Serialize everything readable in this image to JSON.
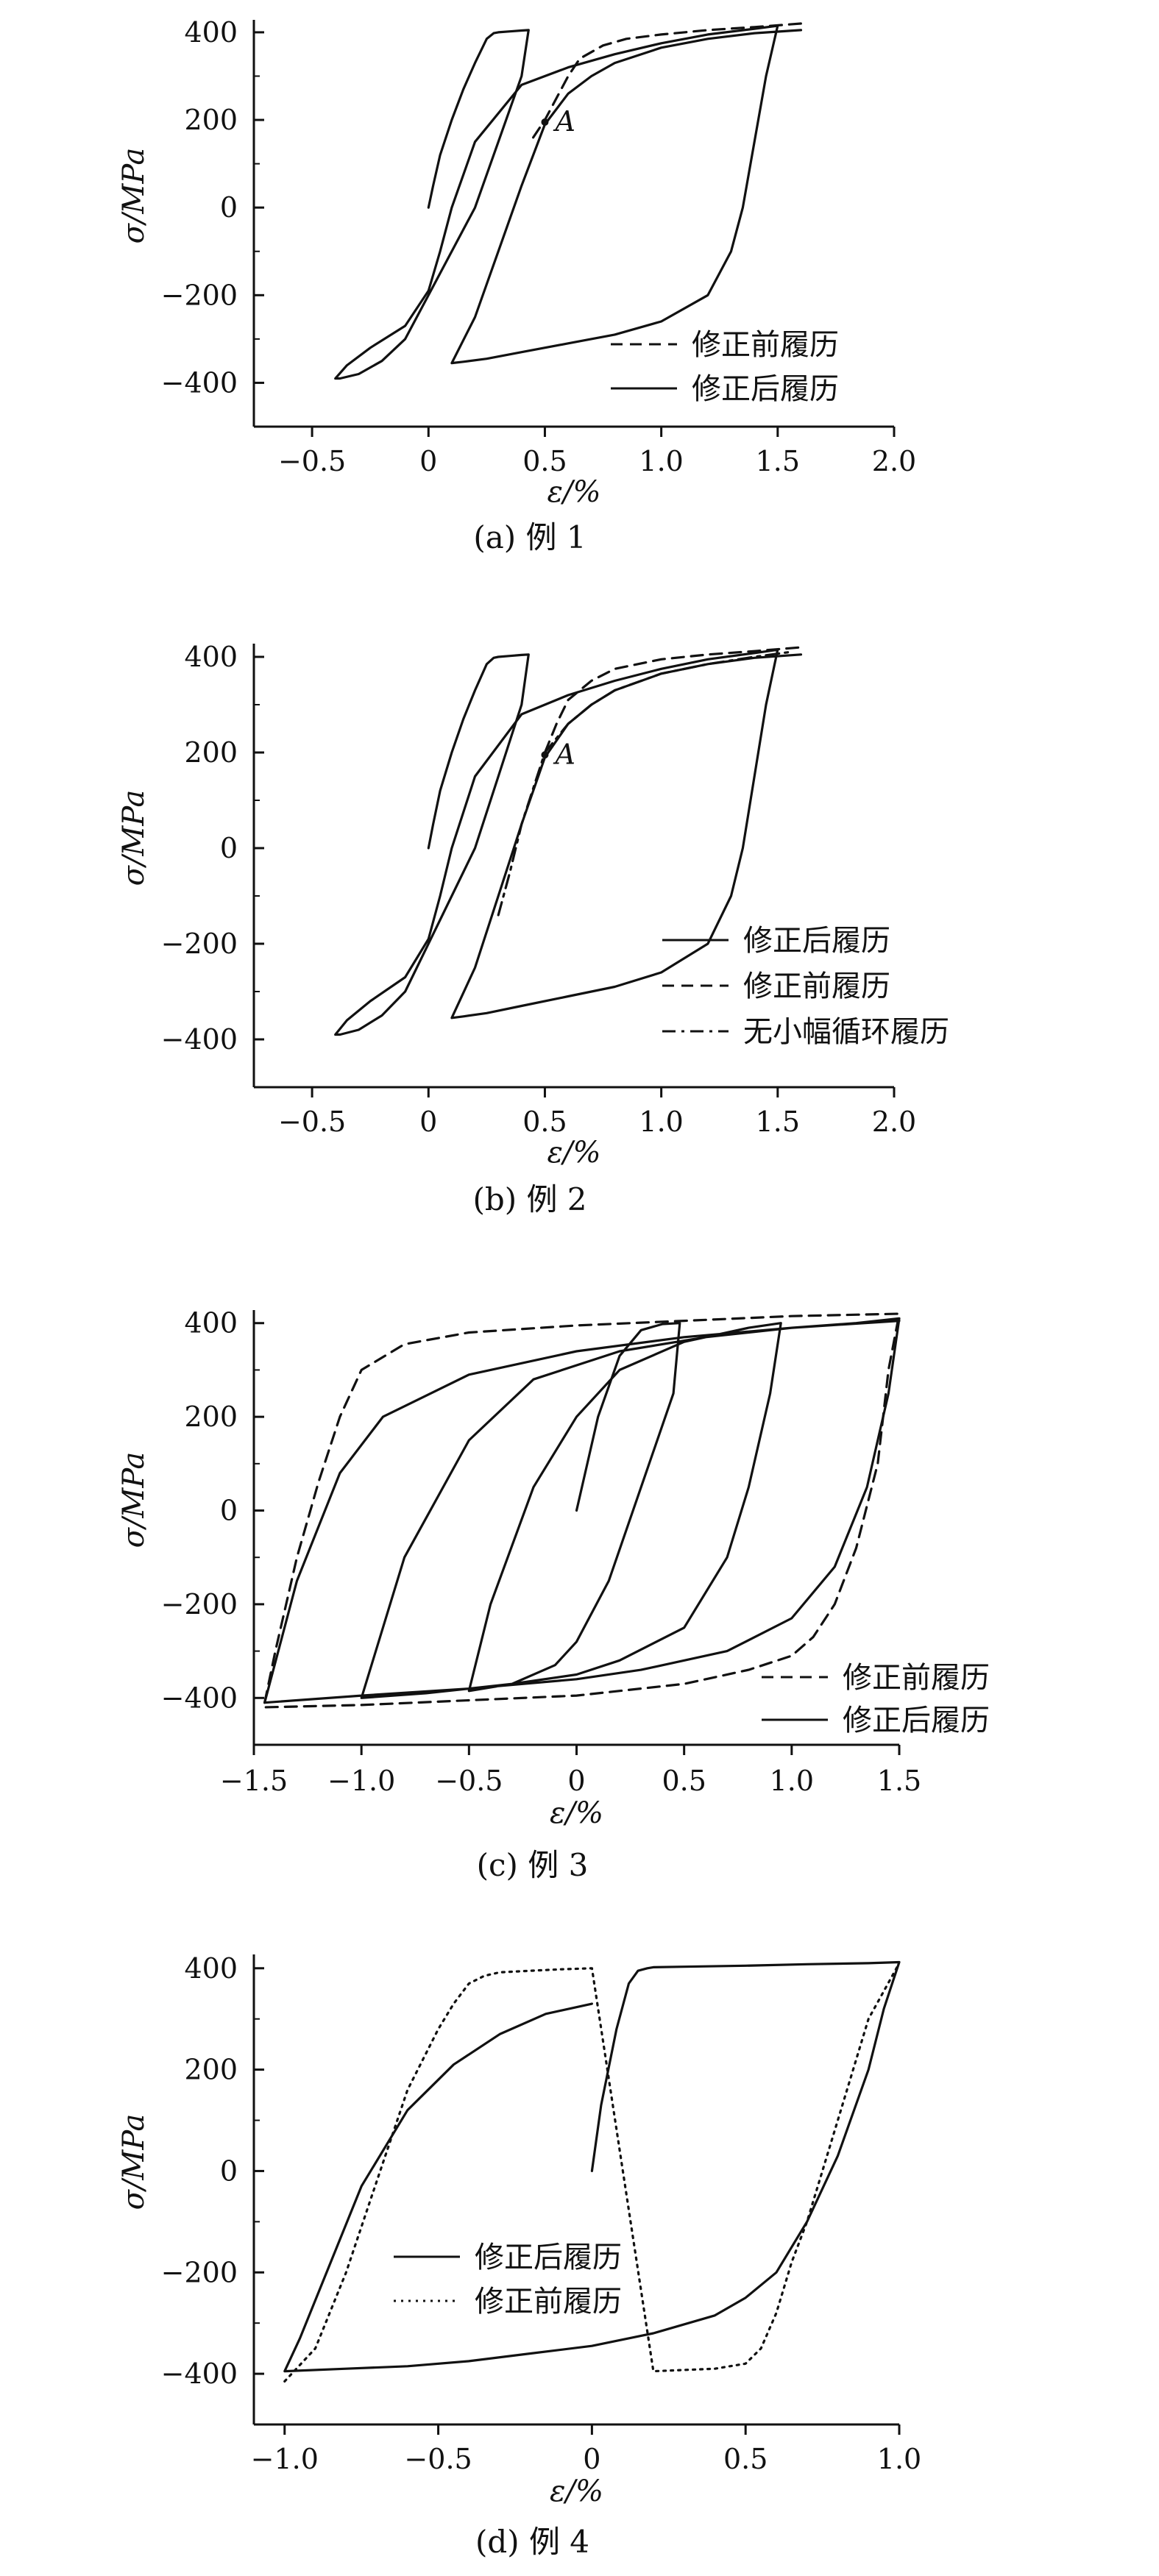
{
  "chart_data": [
    {
      "type": "line",
      "caption": "(a) 例 1",
      "xlabel": "ε/%",
      "ylabel": "σ/MPa",
      "xlim": [
        -0.75,
        2.0
      ],
      "ylim": [
        -500,
        420
      ],
      "xticks": [
        -0.5,
        0,
        0.5,
        1.0,
        1.5,
        2.0
      ],
      "xtick_labels": [
        "−0.5",
        "0",
        "0.5",
        "1.0",
        "1.5",
        "2.0"
      ],
      "yticks": [
        400,
        200,
        0,
        -200,
        -400
      ],
      "ytick_labels": [
        "400",
        "200",
        "0",
        "−200",
        "−400"
      ],
      "legend_position": "bottom-right",
      "annotations": [
        {
          "text": "A",
          "x": 0.5,
          "y": 195
        }
      ],
      "series": [
        {
          "name": "修正前履历",
          "style": "dashed",
          "x": [
            0.45,
            0.5,
            0.55,
            0.6,
            0.65,
            0.75,
            0.85,
            1.0,
            1.2,
            1.4,
            1.55,
            1.6
          ],
          "y": [
            160,
            200,
            250,
            300,
            340,
            370,
            385,
            395,
            405,
            412,
            418,
            420
          ]
        },
        {
          "name": "修正后履历",
          "style": "solid",
          "x": [
            0,
            0.02,
            0.05,
            0.1,
            0.15,
            0.2,
            0.25,
            0.28,
            0.3,
            0.35,
            0.4,
            0.43,
            0.4,
            0.3,
            0.2,
            0.05,
            -0.1,
            -0.2,
            -0.3,
            -0.38,
            -0.4,
            -0.35,
            -0.25,
            -0.1,
            0,
            0.05,
            0.1,
            0.2,
            0.4,
            0.6,
            0.8,
            1.0,
            1.2,
            1.4,
            1.5,
            1.45,
            1.4,
            1.35,
            1.3,
            1.2,
            1.0,
            0.8,
            0.6,
            0.4,
            0.25,
            0.15,
            0.1,
            0.2,
            0.3,
            0.4,
            0.5,
            0.6,
            0.7,
            0.8,
            1.0,
            1.2,
            1.4,
            1.6
          ],
          "y": [
            0,
            50,
            120,
            200,
            270,
            330,
            385,
            398,
            400,
            402,
            404,
            405,
            300,
            150,
            0,
            -150,
            -300,
            -350,
            -380,
            -390,
            -390,
            -360,
            -320,
            -270,
            -190,
            -100,
            0,
            150,
            280,
            320,
            350,
            375,
            395,
            408,
            415,
            300,
            150,
            0,
            -100,
            -200,
            -260,
            -290,
            -310,
            -330,
            -345,
            -352,
            -355,
            -250,
            -100,
            50,
            190,
            260,
            300,
            330,
            365,
            385,
            398,
            405
          ]
        }
      ]
    },
    {
      "type": "line",
      "caption": "(b) 例 2",
      "xlabel": "ε/%",
      "ylabel": "σ/MPa",
      "xlim": [
        -0.75,
        2.0
      ],
      "ylim": [
        -500,
        420
      ],
      "xticks": [
        -0.5,
        0,
        0.5,
        1.0,
        1.5,
        2.0
      ],
      "xtick_labels": [
        "−0.5",
        "0",
        "0.5",
        "1.0",
        "1.5",
        "2.0"
      ],
      "yticks": [
        400,
        200,
        0,
        -200,
        -400
      ],
      "ytick_labels": [
        "400",
        "200",
        "0",
        "−200",
        "−400"
      ],
      "legend_position": "bottom-right",
      "annotations": [
        {
          "text": "A",
          "x": 0.5,
          "y": 195
        }
      ],
      "series": [
        {
          "name": "修正后履历",
          "style": "solid",
          "x": [
            0,
            0.02,
            0.05,
            0.1,
            0.15,
            0.2,
            0.25,
            0.28,
            0.3,
            0.35,
            0.4,
            0.43,
            0.4,
            0.3,
            0.2,
            0.05,
            -0.1,
            -0.2,
            -0.3,
            -0.38,
            -0.4,
            -0.35,
            -0.25,
            -0.1,
            0,
            0.05,
            0.1,
            0.2,
            0.4,
            0.6,
            0.8,
            1.0,
            1.2,
            1.4,
            1.5,
            1.45,
            1.4,
            1.35,
            1.3,
            1.2,
            1.0,
            0.8,
            0.6,
            0.4,
            0.25,
            0.15,
            0.1,
            0.2,
            0.3,
            0.4,
            0.5,
            0.6,
            0.7,
            0.8,
            1.0,
            1.2,
            1.4,
            1.6
          ],
          "y": [
            0,
            50,
            120,
            200,
            270,
            330,
            385,
            398,
            400,
            402,
            404,
            405,
            300,
            150,
            0,
            -150,
            -300,
            -350,
            -380,
            -390,
            -390,
            -360,
            -320,
            -270,
            -190,
            -100,
            0,
            150,
            280,
            320,
            350,
            375,
            395,
            408,
            415,
            300,
            150,
            0,
            -100,
            -200,
            -260,
            -290,
            -310,
            -330,
            -345,
            -352,
            -355,
            -250,
            -100,
            50,
            190,
            260,
            300,
            330,
            365,
            385,
            398,
            405
          ]
        },
        {
          "name": "修正前履历",
          "style": "dashed",
          "x": [
            0.5,
            0.55,
            0.6,
            0.7,
            0.8,
            1.0,
            1.2,
            1.4,
            1.55,
            1.6
          ],
          "y": [
            200,
            260,
            310,
            350,
            375,
            395,
            405,
            412,
            418,
            420
          ]
        },
        {
          "name": "无小幅循环履历",
          "style": "dashdot",
          "x": [
            0.3,
            0.35,
            0.4,
            0.5,
            0.6,
            0.7,
            0.8,
            1.0,
            1.2,
            1.4,
            1.55
          ],
          "y": [
            -140,
            -50,
            50,
            200,
            260,
            300,
            330,
            365,
            385,
            400,
            410
          ]
        }
      ]
    },
    {
      "type": "line",
      "caption": "(c) 例 3",
      "xlabel": "ε/%",
      "ylabel": "σ/MPa",
      "xlim": [
        -1.5,
        1.5
      ],
      "ylim": [
        -500,
        420
      ],
      "xticks": [
        -1.5,
        -1.0,
        -0.5,
        0,
        0.5,
        1.0,
        1.5
      ],
      "xtick_labels": [
        "−1.5",
        "−1.0",
        "−0.5",
        "0",
        "0.5",
        "1.0",
        "1.5"
      ],
      "yticks": [
        400,
        200,
        0,
        -200,
        -400
      ],
      "ytick_labels": [
        "400",
        "200",
        "0",
        "−200",
        "−400"
      ],
      "legend_position": "bottom-right",
      "series": [
        {
          "name": "修正前履历",
          "style": "dashed",
          "x": [
            -1.45,
            -1.4,
            -1.3,
            -1.2,
            -1.1,
            -1.0,
            -0.8,
            -0.5,
            0,
            0.5,
            1.0,
            1.5,
            1.45,
            1.4,
            1.3,
            1.2,
            1.1,
            1.0,
            0.8,
            0.5,
            0,
            -0.5,
            -1.0,
            -1.45
          ],
          "y": [
            -410,
            -300,
            -100,
            60,
            200,
            300,
            355,
            380,
            395,
            405,
            415,
            420,
            300,
            100,
            -80,
            -200,
            -270,
            -310,
            -340,
            -370,
            -395,
            -405,
            -415,
            -420
          ]
        },
        {
          "name": "修正后履历",
          "style": "solid",
          "x": [
            0,
            0.05,
            0.1,
            0.2,
            0.3,
            0.4,
            0.48,
            0.45,
            0.3,
            0.15,
            0,
            -0.1,
            -0.3,
            -0.5,
            -0.4,
            -0.2,
            0,
            0.2,
            0.5,
            0.8,
            0.95,
            0.9,
            0.8,
            0.7,
            0.5,
            0.2,
            0,
            -0.3,
            -0.5,
            -0.7,
            -1.0,
            -0.8,
            -0.5,
            -0.2,
            0.2,
            0.6,
            1.0,
            1.3,
            1.5,
            1.45,
            1.35,
            1.2,
            1.0,
            0.7,
            0.3,
            0,
            -0.5,
            -1.0,
            -1.45,
            -1.3,
            -1.1,
            -0.9,
            -0.5,
            0,
            0.5,
            1.0,
            1.5
          ],
          "y": [
            0,
            100,
            200,
            330,
            385,
            398,
            400,
            250,
            50,
            -150,
            -280,
            -330,
            -370,
            -385,
            -200,
            50,
            200,
            300,
            360,
            390,
            400,
            250,
            50,
            -100,
            -250,
            -320,
            -350,
            -370,
            -380,
            -390,
            -400,
            -100,
            150,
            280,
            340,
            370,
            390,
            400,
            410,
            250,
            50,
            -120,
            -230,
            -300,
            -340,
            -360,
            -380,
            -395,
            -410,
            -150,
            80,
            200,
            290,
            340,
            370,
            390,
            405
          ]
        }
      ]
    },
    {
      "type": "line",
      "caption": "(d) 例 4",
      "xlabel": "ε/%",
      "ylabel": "σ/MPa",
      "xlim": [
        -1.1,
        1.0
      ],
      "ylim": [
        -500,
        420
      ],
      "xticks": [
        -1.0,
        -0.5,
        0,
        0.5,
        1.0
      ],
      "xtick_labels": [
        "−1.0",
        "−0.5",
        "0",
        "0.5",
        "1.0"
      ],
      "yticks": [
        400,
        200,
        0,
        -200,
        -400
      ],
      "ytick_labels": [
        "400",
        "200",
        "0",
        "−200",
        "−400"
      ],
      "legend_position": "bottom-left",
      "series": [
        {
          "name": "修正后履历",
          "style": "solid",
          "x": [
            0,
            0.03,
            0.08,
            0.12,
            0.15,
            0.18,
            0.2,
            0.3,
            0.5,
            0.7,
            0.9,
            1.0,
            0.95,
            0.9,
            0.8,
            0.7,
            0.6,
            0.5,
            0.4,
            0.2,
            0,
            -0.2,
            -0.4,
            -0.6,
            -0.8,
            -1.0,
            -0.95,
            -0.85,
            -0.75,
            -0.6,
            -0.45,
            -0.3,
            -0.15,
            0
          ],
          "y": [
            0,
            130,
            280,
            370,
            395,
            400,
            402,
            403,
            405,
            408,
            410,
            412,
            320,
            200,
            30,
            -100,
            -200,
            -250,
            -285,
            -320,
            -345,
            -360,
            -375,
            -385,
            -390,
            -395,
            -330,
            -180,
            -30,
            120,
            210,
            270,
            310,
            330
          ]
        },
        {
          "name": "修正前履历",
          "style": "dotted",
          "x": [
            -1.0,
            -0.9,
            -0.8,
            -0.7,
            -0.6,
            -0.5,
            -0.45,
            -0.4,
            -0.35,
            -0.3,
            -0.2,
            -0.1,
            0,
            0.2,
            0.4,
            0.5,
            0.55,
            0.6,
            0.65,
            0.7,
            0.75,
            0.8,
            0.9,
            1.0
          ],
          "y": [
            -415,
            -350,
            -200,
            -20,
            160,
            280,
            330,
            370,
            385,
            392,
            395,
            398,
            400,
            -395,
            -390,
            -380,
            -350,
            -280,
            -180,
            -100,
            0,
            100,
            300,
            410
          ]
        }
      ]
    }
  ]
}
